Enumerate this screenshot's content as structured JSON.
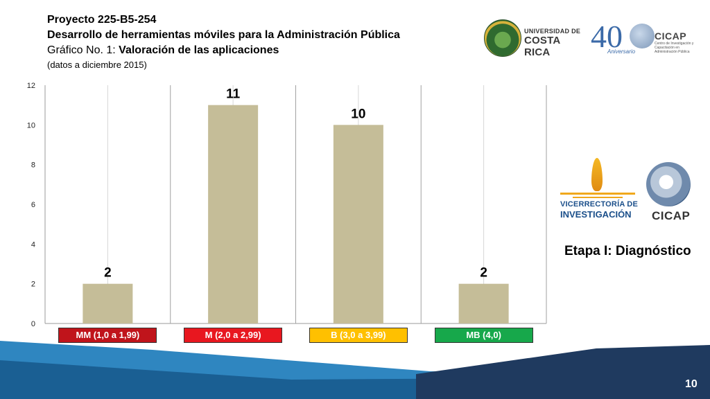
{
  "header": {
    "project": "Proyecto 225-B5-254",
    "subtitle": "Desarrollo de herramientas móviles para la Administración Pública",
    "chart_prefix": "Gráfico No. 1: ",
    "chart_title": "Valoración de las aplicaciones",
    "note": "(datos a diciembre 2015)"
  },
  "logos": {
    "ucr_line1": "UNIVERSIDAD DE",
    "ucr_line2": "COSTA RICA",
    "anniversary_number": "40",
    "anniversary_text": "Aniversario",
    "cicap_name": "CICAP",
    "cicap_desc": "Centro de Investigación y Capacitación en Administración Pública",
    "vice_line1": "VICERRECTORÍA DE",
    "vice_line2": "INVESTIGACIÓN",
    "cicap_name_2": "CICAP"
  },
  "side_text": "Etapa I: Diagnóstico",
  "page_number": "10",
  "colors": {
    "bar": "#c5bd98",
    "cat_mm": "#c0141b",
    "cat_m": "#e8171f",
    "cat_b": "#ffc000",
    "cat_mb": "#17a84b",
    "footer_dark": "#1f3a5f",
    "footer_mid": "#1a5a8c",
    "footer_light": "#2e86c1"
  },
  "chart_data": {
    "type": "bar",
    "categories": [
      "MM (1,0 a 1,99)",
      "M (2,0 a 2,99)",
      "B (3,0 a 3,99)",
      "MB (4,0)"
    ],
    "values": [
      2,
      11,
      10,
      2
    ],
    "data_labels": [
      "2",
      "11",
      "10",
      "2"
    ],
    "ylim": [
      0,
      12
    ],
    "yticks": [
      0,
      2,
      4,
      6,
      8,
      10,
      12
    ],
    "grid": true,
    "legend": "none"
  }
}
